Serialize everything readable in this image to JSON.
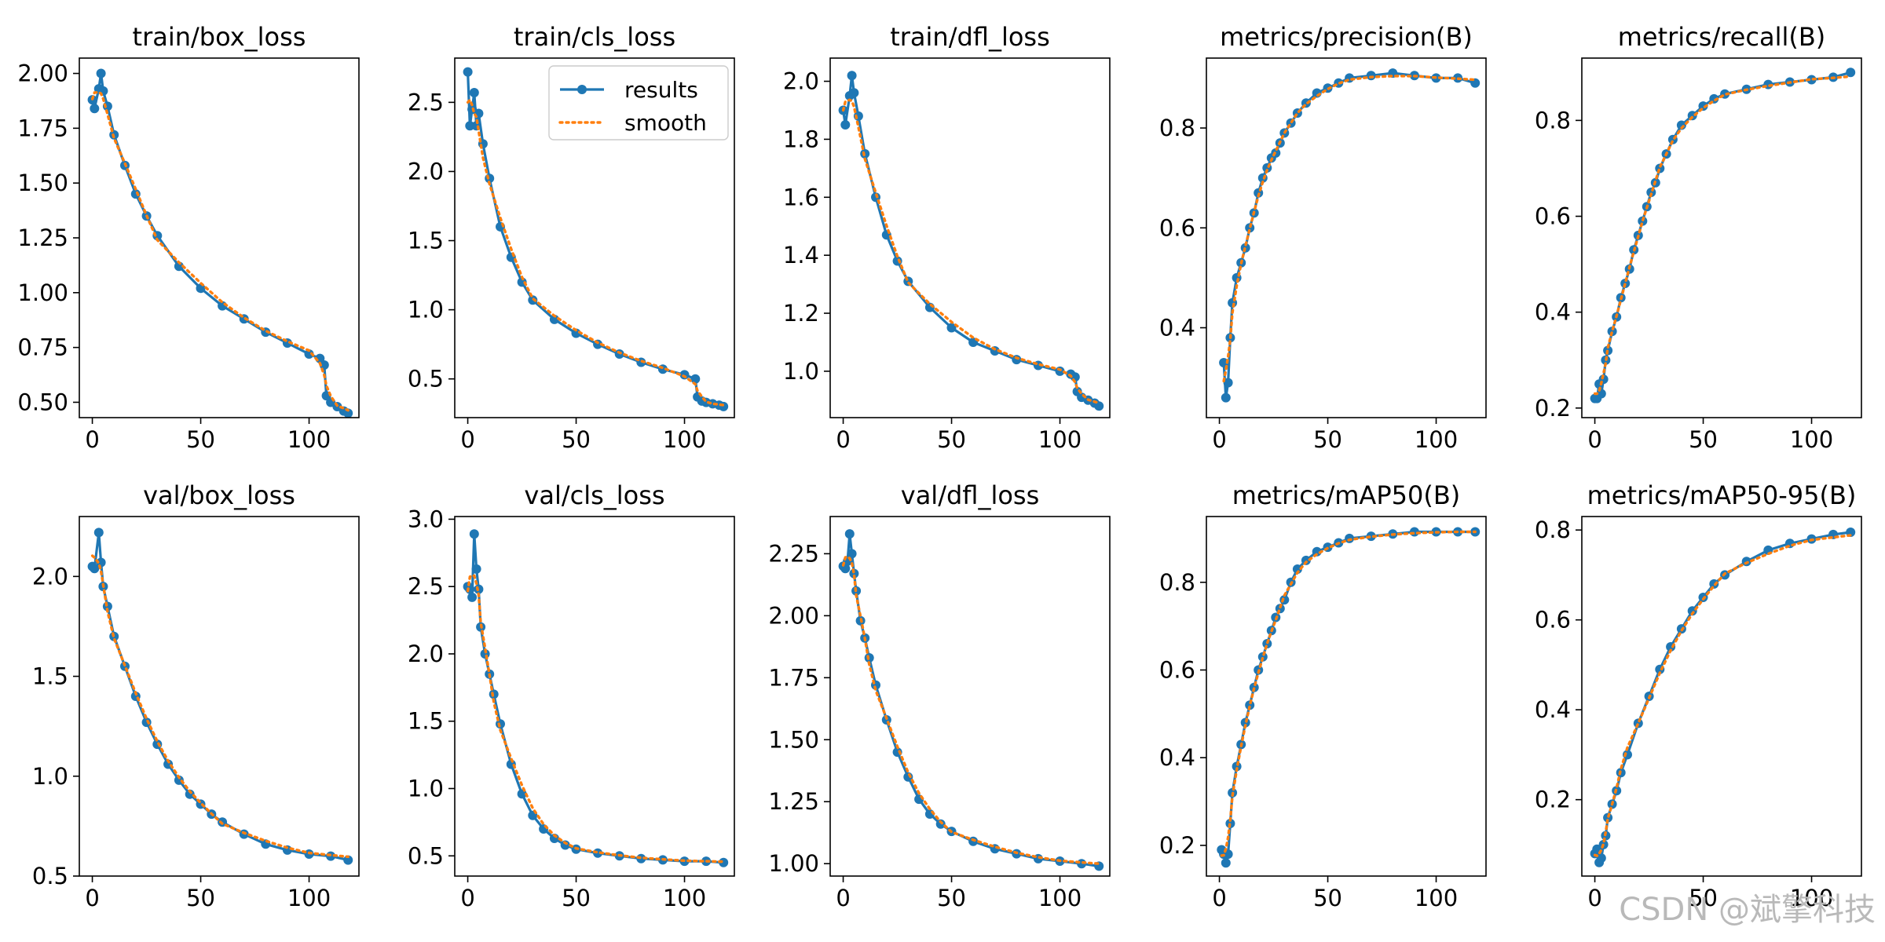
{
  "colors": {
    "results": "#1f77b4",
    "smooth": "#ff7f0e",
    "watermark": "#b9b9b9"
  },
  "legend": {
    "results_label": "results",
    "smooth_label": "smooth",
    "placement": "upper-right of panel 2"
  },
  "watermark": "CSDN @斌擎科技",
  "chart_data": [
    {
      "type": "line",
      "title": "train/box_loss",
      "xlim": [
        -6,
        123
      ],
      "ylim": [
        0.43,
        2.07
      ],
      "xticks": [
        0,
        50,
        100
      ],
      "yticks": [
        0.5,
        0.75,
        1.0,
        1.25,
        1.5,
        1.75,
        2.0
      ],
      "ytick_decimals": 2,
      "series": [
        {
          "name": "results",
          "x": [
            0,
            1,
            3,
            4,
            5,
            7,
            10,
            15,
            20,
            25,
            30,
            40,
            50,
            60,
            70,
            80,
            90,
            100,
            105,
            107,
            108,
            110,
            113,
            116,
            118
          ],
          "y": [
            1.88,
            1.84,
            1.93,
            2.0,
            1.92,
            1.85,
            1.72,
            1.58,
            1.45,
            1.35,
            1.26,
            1.12,
            1.02,
            0.94,
            0.88,
            0.82,
            0.77,
            0.72,
            0.7,
            0.67,
            0.53,
            0.5,
            0.48,
            0.46,
            0.45
          ]
        }
      ]
    },
    {
      "type": "line",
      "title": "train/cls_loss",
      "xlim": [
        -6,
        123
      ],
      "ylim": [
        0.22,
        2.82
      ],
      "xticks": [
        0,
        50,
        100
      ],
      "yticks": [
        0.5,
        1.0,
        1.5,
        2.0,
        2.5
      ],
      "ytick_decimals": 1,
      "legend": true,
      "series": [
        {
          "name": "results",
          "x": [
            0,
            1,
            2,
            3,
            4,
            5,
            7,
            10,
            15,
            20,
            25,
            30,
            40,
            50,
            60,
            70,
            80,
            90,
            100,
            105,
            106,
            108,
            110,
            113,
            116,
            118
          ],
          "y": [
            2.72,
            2.33,
            2.45,
            2.57,
            2.33,
            2.42,
            2.2,
            1.95,
            1.6,
            1.38,
            1.2,
            1.07,
            0.93,
            0.83,
            0.75,
            0.68,
            0.62,
            0.57,
            0.53,
            0.5,
            0.37,
            0.34,
            0.33,
            0.32,
            0.31,
            0.3
          ]
        }
      ]
    },
    {
      "type": "line",
      "title": "train/dfl_loss",
      "xlim": [
        -6,
        123
      ],
      "ylim": [
        0.84,
        2.08
      ],
      "xticks": [
        0,
        50,
        100
      ],
      "yticks": [
        1.0,
        1.2,
        1.4,
        1.6,
        1.8,
        2.0
      ],
      "ytick_decimals": 1,
      "series": [
        {
          "name": "results",
          "x": [
            0,
            1,
            3,
            4,
            5,
            7,
            10,
            15,
            20,
            25,
            30,
            40,
            50,
            60,
            70,
            80,
            90,
            100,
            105,
            107,
            108,
            110,
            113,
            116,
            118
          ],
          "y": [
            1.9,
            1.85,
            1.95,
            2.02,
            1.96,
            1.88,
            1.75,
            1.6,
            1.47,
            1.38,
            1.31,
            1.22,
            1.15,
            1.1,
            1.07,
            1.04,
            1.02,
            1.0,
            0.99,
            0.98,
            0.93,
            0.91,
            0.9,
            0.89,
            0.88
          ]
        }
      ]
    },
    {
      "type": "line",
      "title": "metrics/precision(B)",
      "xlim": [
        -6,
        123
      ],
      "ylim": [
        0.22,
        0.94
      ],
      "xticks": [
        0,
        50,
        100
      ],
      "yticks": [
        0.4,
        0.6,
        0.8
      ],
      "ytick_decimals": 1,
      "series": [
        {
          "name": "results",
          "x": [
            2,
            3,
            4,
            5,
            6,
            8,
            10,
            12,
            14,
            16,
            18,
            20,
            22,
            24,
            26,
            28,
            30,
            33,
            36,
            40,
            45,
            50,
            55,
            60,
            70,
            80,
            90,
            100,
            110,
            118
          ],
          "y": [
            0.33,
            0.26,
            0.29,
            0.38,
            0.45,
            0.5,
            0.53,
            0.56,
            0.6,
            0.63,
            0.67,
            0.7,
            0.72,
            0.74,
            0.75,
            0.77,
            0.79,
            0.81,
            0.83,
            0.85,
            0.87,
            0.88,
            0.89,
            0.9,
            0.905,
            0.91,
            0.905,
            0.9,
            0.9,
            0.89
          ]
        }
      ]
    },
    {
      "type": "line",
      "title": "metrics/recall(B)",
      "xlim": [
        -6,
        123
      ],
      "ylim": [
        0.18,
        0.93
      ],
      "xticks": [
        0,
        50,
        100
      ],
      "yticks": [
        0.2,
        0.4,
        0.6,
        0.8
      ],
      "ytick_decimals": 1,
      "series": [
        {
          "name": "results",
          "x": [
            0,
            1,
            2,
            3,
            4,
            5,
            6,
            8,
            10,
            12,
            14,
            16,
            18,
            20,
            22,
            24,
            26,
            28,
            30,
            33,
            36,
            40,
            45,
            50,
            55,
            60,
            70,
            80,
            90,
            100,
            110,
            118
          ],
          "y": [
            0.22,
            0.22,
            0.25,
            0.23,
            0.26,
            0.3,
            0.32,
            0.36,
            0.39,
            0.43,
            0.46,
            0.49,
            0.53,
            0.56,
            0.59,
            0.62,
            0.65,
            0.67,
            0.7,
            0.73,
            0.76,
            0.79,
            0.81,
            0.83,
            0.845,
            0.855,
            0.865,
            0.875,
            0.88,
            0.885,
            0.89,
            0.9
          ]
        }
      ]
    },
    {
      "type": "line",
      "title": "val/box_loss",
      "xlim": [
        -6,
        123
      ],
      "ylim": [
        0.5,
        2.3
      ],
      "xticks": [
        0,
        50,
        100
      ],
      "yticks": [
        0.5,
        1.0,
        1.5,
        2.0
      ],
      "ytick_decimals": 1,
      "series": [
        {
          "name": "results",
          "x": [
            0,
            1,
            3,
            4,
            5,
            7,
            10,
            15,
            20,
            25,
            30,
            35,
            40,
            45,
            50,
            55,
            60,
            70,
            80,
            90,
            100,
            110,
            118
          ],
          "y": [
            2.05,
            2.04,
            2.22,
            2.07,
            1.95,
            1.85,
            1.7,
            1.55,
            1.4,
            1.27,
            1.16,
            1.06,
            0.98,
            0.91,
            0.86,
            0.81,
            0.77,
            0.71,
            0.66,
            0.63,
            0.61,
            0.6,
            0.58
          ]
        }
      ]
    },
    {
      "type": "line",
      "title": "val/cls_loss",
      "xlim": [
        -6,
        123
      ],
      "ylim": [
        0.35,
        3.02
      ],
      "xticks": [
        0,
        50,
        100
      ],
      "yticks": [
        0.5,
        1.0,
        1.5,
        2.0,
        2.5,
        3.0
      ],
      "ytick_decimals": 1,
      "series": [
        {
          "name": "results",
          "x": [
            0,
            1,
            2,
            3,
            4,
            5,
            6,
            8,
            10,
            12,
            15,
            20,
            25,
            30,
            35,
            40,
            45,
            50,
            60,
            70,
            80,
            90,
            100,
            110,
            118
          ],
          "y": [
            2.5,
            2.48,
            2.42,
            2.89,
            2.63,
            2.48,
            2.2,
            2.0,
            1.85,
            1.7,
            1.48,
            1.18,
            0.96,
            0.8,
            0.7,
            0.63,
            0.58,
            0.55,
            0.52,
            0.5,
            0.48,
            0.47,
            0.46,
            0.46,
            0.45
          ]
        }
      ]
    },
    {
      "type": "line",
      "title": "val/dfl_loss",
      "xlim": [
        -6,
        123
      ],
      "ylim": [
        0.95,
        2.4
      ],
      "xticks": [
        0,
        50,
        100
      ],
      "yticks": [
        1.0,
        1.25,
        1.5,
        1.75,
        2.0,
        2.25
      ],
      "ytick_decimals": 2,
      "series": [
        {
          "name": "results",
          "x": [
            0,
            1,
            2,
            3,
            4,
            5,
            6,
            8,
            10,
            12,
            15,
            20,
            25,
            30,
            35,
            40,
            45,
            50,
            60,
            70,
            80,
            90,
            100,
            110,
            118
          ],
          "y": [
            2.2,
            2.19,
            2.22,
            2.33,
            2.25,
            2.17,
            2.1,
            1.98,
            1.91,
            1.83,
            1.72,
            1.58,
            1.45,
            1.35,
            1.26,
            1.2,
            1.16,
            1.13,
            1.09,
            1.06,
            1.04,
            1.02,
            1.01,
            1.0,
            0.99
          ]
        }
      ]
    },
    {
      "type": "line",
      "title": "metrics/mAP50(B)",
      "xlim": [
        -6,
        123
      ],
      "ylim": [
        0.13,
        0.95
      ],
      "xticks": [
        0,
        50,
        100
      ],
      "yticks": [
        0.2,
        0.4,
        0.6,
        0.8
      ],
      "ytick_decimals": 1,
      "series": [
        {
          "name": "results",
          "x": [
            1,
            2,
            3,
            4,
            5,
            6,
            8,
            10,
            12,
            14,
            16,
            18,
            20,
            22,
            24,
            26,
            28,
            30,
            33,
            36,
            40,
            45,
            50,
            55,
            60,
            70,
            80,
            90,
            100,
            110,
            118
          ],
          "y": [
            0.19,
            0.18,
            0.16,
            0.18,
            0.25,
            0.32,
            0.38,
            0.43,
            0.48,
            0.52,
            0.56,
            0.6,
            0.63,
            0.66,
            0.69,
            0.72,
            0.74,
            0.76,
            0.8,
            0.83,
            0.85,
            0.87,
            0.88,
            0.89,
            0.9,
            0.905,
            0.91,
            0.915,
            0.915,
            0.915,
            0.915
          ]
        }
      ]
    },
    {
      "type": "line",
      "title": "metrics/mAP50-95(B)",
      "xlim": [
        -6,
        123
      ],
      "ylim": [
        0.03,
        0.83
      ],
      "xticks": [
        0,
        50,
        100
      ],
      "yticks": [
        0.2,
        0.4,
        0.6,
        0.8
      ],
      "ytick_decimals": 1,
      "series": [
        {
          "name": "results",
          "x": [
            0,
            1,
            2,
            3,
            4,
            5,
            6,
            8,
            10,
            12,
            15,
            20,
            25,
            30,
            35,
            40,
            45,
            50,
            55,
            60,
            70,
            80,
            90,
            100,
            110,
            118
          ],
          "y": [
            0.08,
            0.09,
            0.06,
            0.07,
            0.1,
            0.12,
            0.16,
            0.19,
            0.22,
            0.26,
            0.3,
            0.37,
            0.43,
            0.49,
            0.54,
            0.58,
            0.62,
            0.65,
            0.68,
            0.7,
            0.73,
            0.755,
            0.77,
            0.78,
            0.79,
            0.795
          ]
        }
      ]
    }
  ]
}
